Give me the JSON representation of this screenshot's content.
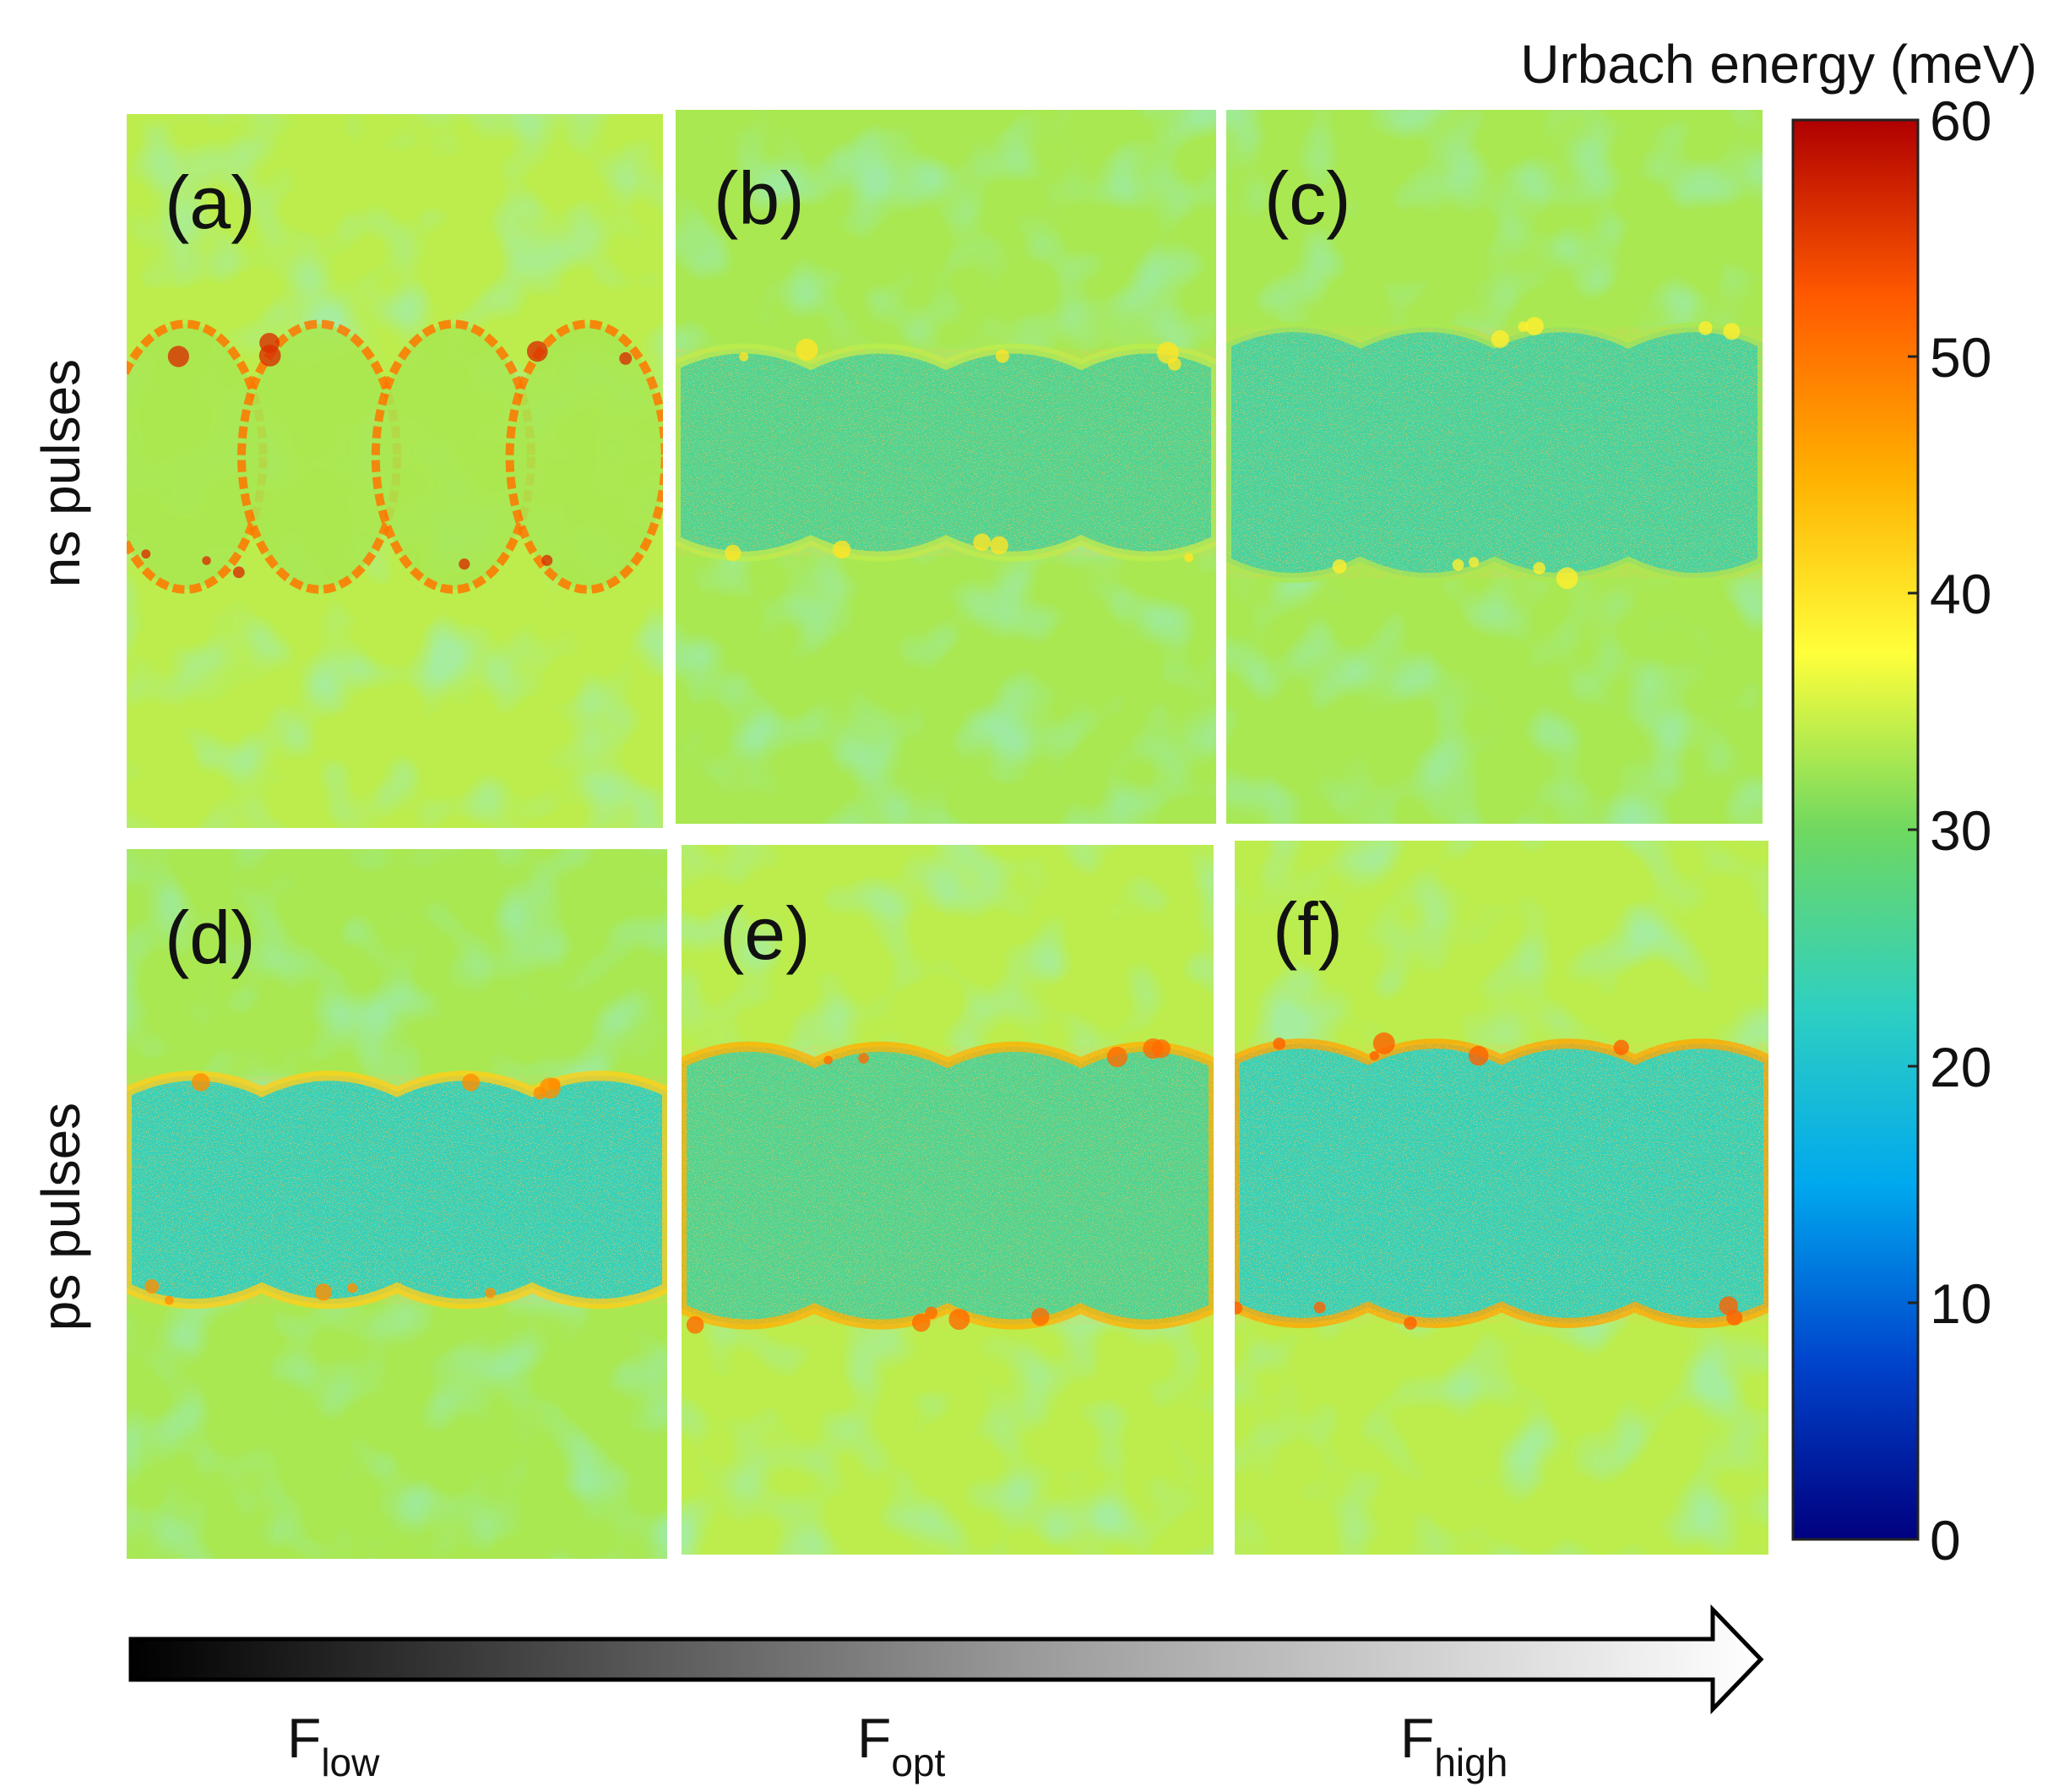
{
  "chart_data": {
    "type": "heatmap",
    "title": "",
    "colorbar": {
      "title": "Urbach energy (meV)",
      "min": 0,
      "max": 60,
      "ticks": [
        0,
        10,
        20,
        30,
        40,
        50,
        60
      ],
      "tick_labels": [
        "0",
        "10",
        "20",
        "30",
        "40",
        "50",
        "60"
      ],
      "colormap": [
        "#00007f",
        "#0044cc",
        "#00a8ee",
        "#2fd0c0",
        "#6fd860",
        "#ffff3a",
        "#ffb000",
        "#ff5a00",
        "#b00000"
      ]
    },
    "rows": [
      {
        "label": "ns pulses"
      },
      {
        "label": "ps pulses"
      }
    ],
    "columns": [
      "F_low",
      "F_opt",
      "F_high"
    ],
    "panels": [
      {
        "id": "a",
        "label": "(a)",
        "row": "ns pulses",
        "fluence": "F_low",
        "background_meV": 34,
        "track_interior_meV": 33,
        "track_edge_meV": 50,
        "track_style": "rings"
      },
      {
        "id": "b",
        "label": "(b)",
        "row": "ns pulses",
        "fluence": "F_opt",
        "background_meV": 33,
        "track_interior_meV": 26,
        "track_edge_meV": 34,
        "track_style": "band"
      },
      {
        "id": "c",
        "label": "(c)",
        "row": "ns pulses",
        "fluence": "F_high",
        "background_meV": 33,
        "track_interior_meV": 25,
        "track_edge_meV": 33,
        "track_style": "band"
      },
      {
        "id": "d",
        "label": "(d)",
        "row": "ps pulses",
        "fluence": "F_low",
        "background_meV": 33,
        "track_interior_meV": 23,
        "track_edge_meV": 42,
        "track_style": "band"
      },
      {
        "id": "e",
        "label": "(e)",
        "row": "ps pulses",
        "fluence": "F_opt",
        "background_meV": 34,
        "track_interior_meV": 26,
        "track_edge_meV": 45,
        "track_style": "band"
      },
      {
        "id": "f",
        "label": "(f)",
        "row": "ps pulses",
        "fluence": "F_high",
        "background_meV": 34,
        "track_interior_meV": 23,
        "track_edge_meV": 46,
        "track_style": "band"
      }
    ],
    "fluence_axis": {
      "labels": [
        {
          "base": "F",
          "sub": "low"
        },
        {
          "base": "F",
          "sub": "opt"
        },
        {
          "base": "F",
          "sub": "high"
        }
      ]
    }
  }
}
